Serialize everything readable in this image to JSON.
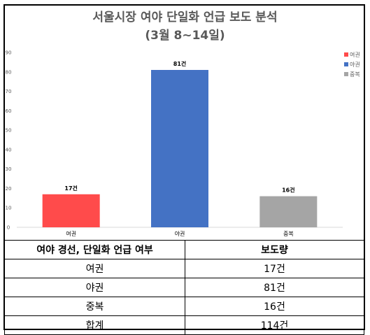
{
  "chart_data": {
    "type": "bar",
    "title_lines": [
      "서울시장 여야 단일화 언급 보도 분석",
      "(3월 8~14일)"
    ],
    "categories": [
      "여권",
      "야권",
      "중복"
    ],
    "values": [
      17,
      81,
      16
    ],
    "data_labels": [
      "17건",
      "81건",
      "16건"
    ],
    "colors": [
      "#ff4b4b",
      "#4472c4",
      "#a5a5a5"
    ],
    "ylim": [
      0,
      90
    ],
    "yticks": [
      0,
      10,
      20,
      30,
      40,
      50,
      60,
      70,
      80,
      90
    ],
    "grid": false,
    "legend": {
      "position": "top-right",
      "entries": [
        "여권",
        "야권",
        "중복"
      ]
    }
  },
  "table": {
    "headers": [
      "여야 경선, 단일화 언급 여부",
      "보도량"
    ],
    "rows": [
      [
        "여권",
        "17건"
      ],
      [
        "야권",
        "81건"
      ],
      [
        "중복",
        "16건"
      ],
      [
        "합계",
        "114건"
      ]
    ]
  }
}
